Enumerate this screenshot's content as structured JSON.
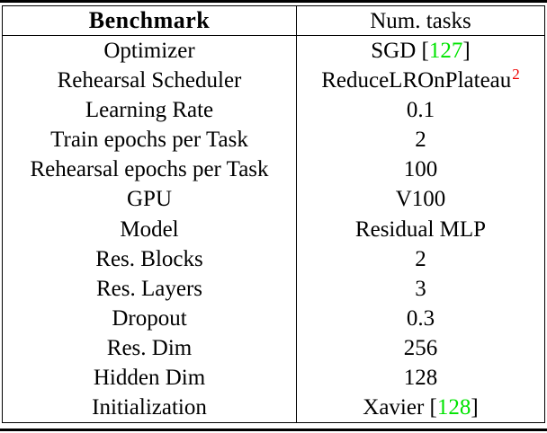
{
  "colors": {
    "citation_link": "#00E400",
    "footnote_link": "#EE0000",
    "text": "#000000",
    "rule": "#000000",
    "background": "#FFFFFF"
  },
  "table": {
    "header": {
      "benchmark": "Benchmark",
      "num_tasks": "Num. tasks"
    },
    "rows": [
      {
        "label": "Optimizer",
        "value": {
          "pre": "SGD [",
          "cite": "127",
          "post": "]"
        }
      },
      {
        "label": "Rehearsal Scheduler",
        "value": {
          "text": "ReduceLROnPlateau",
          "sup": "2"
        }
      },
      {
        "label": "Learning Rate",
        "value": {
          "text": "0.1"
        }
      },
      {
        "label": "Train epochs per Task",
        "value": {
          "text": "2"
        }
      },
      {
        "label": "Rehearsal epochs per Task",
        "value": {
          "text": "100"
        }
      },
      {
        "label": "GPU",
        "value": {
          "text": "V100"
        }
      },
      {
        "label": "Model",
        "value": {
          "text": "Residual MLP"
        }
      },
      {
        "label": "Res. Blocks",
        "value": {
          "text": "2"
        }
      },
      {
        "label": "Res. Layers",
        "value": {
          "text": "3"
        }
      },
      {
        "label": "Dropout",
        "value": {
          "text": "0.3"
        }
      },
      {
        "label": "Res. Dim",
        "value": {
          "text": "256"
        }
      },
      {
        "label": "Hidden Dim",
        "value": {
          "text": "128"
        }
      },
      {
        "label": "Initialization",
        "value": {
          "pre": "Xavier [",
          "cite": "128",
          "post": "]"
        }
      }
    ]
  }
}
